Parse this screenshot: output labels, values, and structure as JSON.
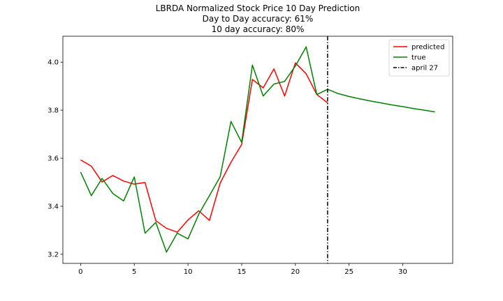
{
  "chart_data": {
    "type": "line",
    "title_lines": [
      "LBRDA Normalized Stock Price 10 Day Prediction",
      "Day to Day accuracy: 61%",
      "10 day accuracy: 80%"
    ],
    "xlabel": "",
    "ylabel": "",
    "xlim": [
      -1.65,
      34.65
    ],
    "ylim": [
      3.162,
      4.108
    ],
    "xticks": [
      0,
      5,
      10,
      15,
      20,
      25,
      30
    ],
    "yticks": [
      3.2,
      3.4,
      3.6,
      3.8,
      4.0
    ],
    "ytick_labels": [
      "3.2",
      "3.4",
      "3.6",
      "3.8",
      "4.0"
    ],
    "series": [
      {
        "name": "predicted",
        "color": "#ff0000",
        "x": [
          0,
          1,
          2,
          3,
          4,
          5,
          6,
          7,
          8,
          9,
          10,
          11,
          12,
          13,
          14,
          15,
          16,
          17,
          18,
          19,
          20,
          21,
          22,
          23
        ],
        "y": [
          3.593,
          3.567,
          3.501,
          3.528,
          3.505,
          3.492,
          3.499,
          3.34,
          3.308,
          3.292,
          3.343,
          3.381,
          3.341,
          3.497,
          3.583,
          3.657,
          3.928,
          3.893,
          3.972,
          3.859,
          3.997,
          3.952,
          3.865,
          3.831
        ]
      },
      {
        "name": "true",
        "color": "#008000",
        "x": [
          0,
          1,
          2,
          3,
          4,
          5,
          6,
          7,
          8,
          9,
          10,
          11,
          12,
          13,
          14,
          15,
          16,
          17,
          18,
          19,
          20,
          21,
          22,
          23,
          24,
          25,
          26,
          27,
          28,
          29,
          30,
          31,
          32,
          33
        ],
        "y": [
          3.542,
          3.444,
          3.516,
          3.453,
          3.422,
          3.522,
          3.288,
          3.333,
          3.209,
          3.288,
          3.264,
          3.367,
          3.444,
          3.523,
          3.753,
          3.666,
          3.988,
          3.859,
          3.909,
          3.92,
          3.984,
          4.064,
          3.865,
          3.887,
          3.869,
          3.857,
          3.847,
          3.838,
          3.83,
          3.822,
          3.815,
          3.807,
          3.8,
          3.793
        ]
      }
    ],
    "vline": {
      "name": "april 27",
      "x": 23,
      "color": "#000000",
      "style": "dashdot"
    },
    "legend": {
      "position": "upper right",
      "entries": [
        "predicted",
        "true",
        "april 27"
      ]
    },
    "grid": false
  }
}
